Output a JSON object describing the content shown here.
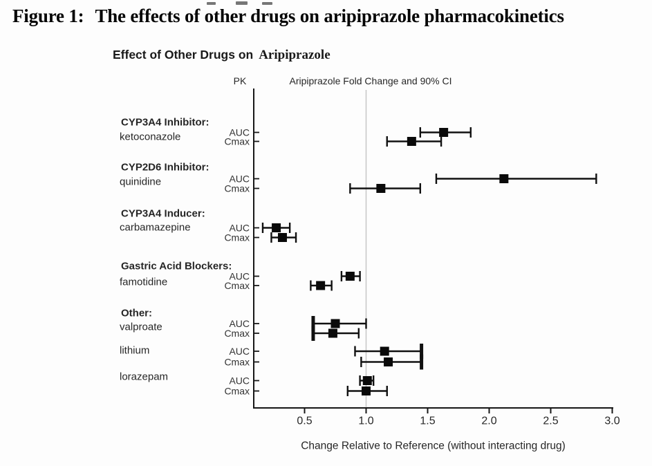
{
  "figure": {
    "title_label": "Figure 1:",
    "title_text": "The effects of other drugs on aripiprazole pharmacokinetics",
    "subtitle_main": "Effect of Other Drugs on",
    "subtitle_emph": "Aripiprazole",
    "pk_header": "PK",
    "ci_header": "Aripiprazole Fold Change and 90% CI",
    "xlabel": "Change Relative to Reference (without interacting drug)"
  },
  "colors": {
    "marker": "#0a0a0a",
    "ci_line": "#111111",
    "axis": "#161616",
    "reference_line": "#c8c8c8",
    "text": "#262626"
  },
  "chart_data": {
    "type": "forest",
    "title": "Effect of Other Drugs on Aripiprazole",
    "xlabel": "Change Relative to Reference (without interacting drug)",
    "ci_level": "90% CI",
    "x_axis": {
      "ticks": [
        0.5,
        1.0,
        1.5,
        2.0,
        2.5,
        3.0
      ],
      "range": [
        0.09,
        3.0
      ],
      "reference_line": 1.0
    },
    "groups": [
      {
        "category": "CYP3A4 Inhibitor:",
        "drug": "ketoconazole",
        "rows": [
          {
            "pk": "AUC",
            "estimate": 1.63,
            "ci_low": 1.44,
            "ci_high": 1.85
          },
          {
            "pk": "Cmax",
            "estimate": 1.37,
            "ci_low": 1.17,
            "ci_high": 1.61
          }
        ]
      },
      {
        "category": "CYP2D6 Inhibitor:",
        "drug": "quinidine",
        "rows": [
          {
            "pk": "AUC",
            "estimate": 2.12,
            "ci_low": 1.57,
            "ci_high": 2.87
          },
          {
            "pk": "Cmax",
            "estimate": 1.12,
            "ci_low": 0.87,
            "ci_high": 1.44
          }
        ]
      },
      {
        "category": "CYP3A4 Inducer:",
        "drug": "carbamazepine",
        "rows": [
          {
            "pk": "AUC",
            "estimate": 0.27,
            "ci_low": 0.16,
            "ci_high": 0.38
          },
          {
            "pk": "Cmax",
            "estimate": 0.32,
            "ci_low": 0.23,
            "ci_high": 0.43
          }
        ]
      },
      {
        "category": "Gastric Acid Blockers:",
        "drug": "famotidine",
        "rows": [
          {
            "pk": "AUC",
            "estimate": 0.87,
            "ci_low": 0.8,
            "ci_high": 0.95
          },
          {
            "pk": "Cmax",
            "estimate": 0.63,
            "ci_low": 0.55,
            "ci_high": 0.72
          }
        ]
      },
      {
        "category": "Other:",
        "drug": "valproate",
        "rows": [
          {
            "pk": "AUC",
            "estimate": 0.75,
            "ci_low": 0.57,
            "ci_high": 1.0,
            "bold_left_cap": true
          },
          {
            "pk": "Cmax",
            "estimate": 0.73,
            "ci_low": 0.57,
            "ci_high": 0.94,
            "bold_left_cap": true
          }
        ]
      },
      {
        "category": "",
        "drug": "lithium",
        "rows": [
          {
            "pk": "AUC",
            "estimate": 1.15,
            "ci_low": 0.91,
            "ci_high": 1.45,
            "bold_right_cap": true
          },
          {
            "pk": "Cmax",
            "estimate": 1.18,
            "ci_low": 0.96,
            "ci_high": 1.45,
            "bold_right_cap": true
          }
        ]
      },
      {
        "category": "",
        "drug": "lorazepam",
        "rows": [
          {
            "pk": "AUC",
            "estimate": 1.01,
            "ci_low": 0.95,
            "ci_high": 1.06
          },
          {
            "pk": "Cmax",
            "estimate": 1.0,
            "ci_low": 0.85,
            "ci_high": 1.17
          }
        ]
      }
    ]
  }
}
